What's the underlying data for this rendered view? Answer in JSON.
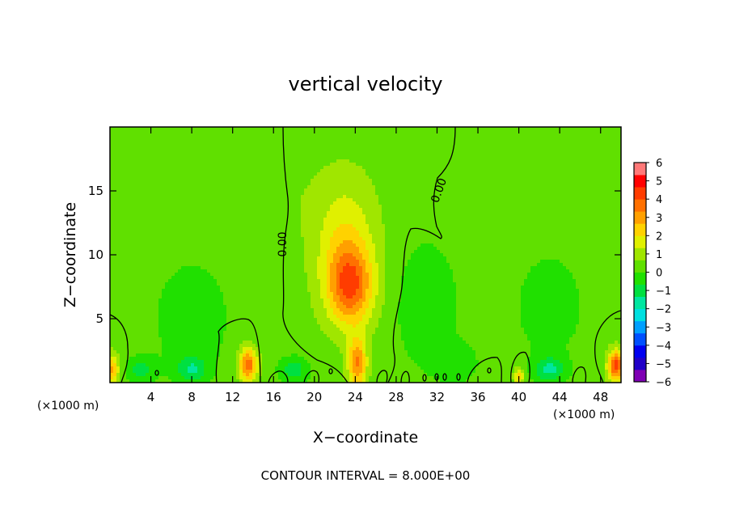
{
  "chart_data": {
    "type": "heatmap",
    "title": "vertical velocity",
    "xlabel": "X−coordinate",
    "ylabel": "Z−coordinate",
    "x_unit_left": "(×1000 m)",
    "x_unit_right": "(×1000 m)",
    "footer": "CONTOUR INTERVAL = 8.000E+00",
    "xlim": [
      0,
      50
    ],
    "ylim": [
      0,
      20
    ],
    "x_ticks": [
      4,
      8,
      12,
      16,
      20,
      24,
      28,
      32,
      36,
      40,
      44,
      48
    ],
    "y_ticks": [
      5,
      10,
      15
    ],
    "contour_label": "0.00",
    "colorbar": {
      "min": -6,
      "max": 6,
      "ticks": [
        "6",
        "5",
        "4",
        "3",
        "2",
        "1",
        "0",
        "−1",
        "−2",
        "−3",
        "−4",
        "−5",
        "−6"
      ],
      "colors": [
        "#7f00b4",
        "#2000c8",
        "#0000f0",
        "#0050ff",
        "#00a0ff",
        "#00e0e0",
        "#00e6a0",
        "#00e040",
        "#20e000",
        "#60e000",
        "#a0e600",
        "#e0f000",
        "#ffd200",
        "#ffa000",
        "#ff7000",
        "#ff3c00",
        "#ff0000",
        "#ff7878"
      ]
    },
    "features": [
      {
        "x": 23.5,
        "z": 7.5,
        "w": 3.2,
        "sx": 2.2,
        "sz": 3.0
      },
      {
        "x": 24.2,
        "z": 1.5,
        "w": 3.0,
        "sx": 0.9,
        "sz": 2.0
      },
      {
        "x": 23.0,
        "z": 11.0,
        "w": 1.6,
        "sx": 3.0,
        "sz": 5.0
      },
      {
        "x": 13.5,
        "z": 1.4,
        "w": 3.5,
        "sx": 0.9,
        "sz": 1.3
      },
      {
        "x": 49.5,
        "z": 1.3,
        "w": 4.0,
        "sx": 0.8,
        "sz": 1.2
      },
      {
        "x": 0.2,
        "z": 1.0,
        "w": 2.5,
        "sx": 0.7,
        "sz": 1.2
      },
      {
        "x": 40.0,
        "z": 0.5,
        "w": 2.0,
        "sx": 0.5,
        "sz": 0.7
      },
      {
        "x": 8.0,
        "z": 5.0,
        "w": -0.7,
        "sx": 4.0,
        "sz": 5.0
      },
      {
        "x": 31.0,
        "z": 6.0,
        "w": -0.9,
        "sx": 3.0,
        "sz": 5.0
      },
      {
        "x": 43.0,
        "z": 6.0,
        "w": -0.6,
        "sx": 4.0,
        "sz": 5.0
      },
      {
        "x": 3.0,
        "z": 1.0,
        "w": -1.2,
        "sx": 1.5,
        "sz": 1.0
      },
      {
        "x": 8.0,
        "z": 1.0,
        "w": -1.5,
        "sx": 1.5,
        "sz": 1.0
      },
      {
        "x": 18.0,
        "z": 1.0,
        "w": -1.4,
        "sx": 1.5,
        "sz": 1.0
      },
      {
        "x": 43.0,
        "z": 1.0,
        "w": -1.7,
        "sx": 1.5,
        "sz": 1.0
      },
      {
        "x": 34.0,
        "z": 1.5,
        "w": -0.8,
        "sx": 2.0,
        "sz": 1.5
      },
      {
        "x": 16.0,
        "z": 15.0,
        "w": 0.3,
        "sx": 4.0,
        "sz": 4.0
      }
    ]
  }
}
